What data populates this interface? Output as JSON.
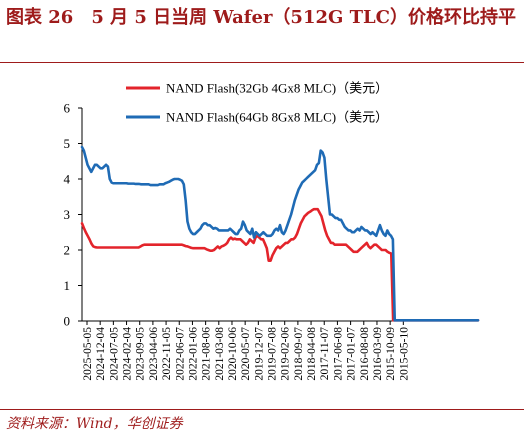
{
  "title": "图表 26　5 月 5 日当周 Wafer（512G TLC）价格环比持平",
  "source": "资料来源：Wind，华创证券",
  "colors": {
    "title": "#9e1b1b",
    "series_red": "#e3242b",
    "series_blue": "#1f6bb5",
    "axis": "#000000"
  },
  "chart_data": {
    "type": "line",
    "ylim": [
      0,
      6
    ],
    "yticks": [
      "0",
      "1",
      "2",
      "3",
      "4",
      "5",
      "6"
    ],
    "x_tick_labels": [
      "2025-05-05",
      "2024-12-04",
      "2024-07-05",
      "2024-02-04",
      "2023-09-05",
      "2023-04-06",
      "2022-11-05",
      "2022-06-07",
      "2022-01-06",
      "2021-08-06",
      "2021-03-08",
      "2020-10-06",
      "2020-05-07",
      "2019-12-07",
      "2019-07-08",
      "2019-02-06",
      "2018-09-07",
      "2018-04-08",
      "2017-11-07",
      "2017-06-08",
      "2017-01-07",
      "2016-08-08",
      "2016-03-09",
      "2015-10-09",
      "2015-05-10"
    ],
    "legend_position": "top",
    "series": [
      {
        "name": "NAND Flash(32Gb 4Gx8 MLC)（美元）",
        "color": "#e3242b",
        "values": [
          2.75,
          2.62,
          2.5,
          2.4,
          2.3,
          2.18,
          2.1,
          2.08,
          2.07,
          2.07,
          2.07,
          2.07,
          2.07,
          2.07,
          2.07,
          2.07,
          2.07,
          2.07,
          2.07,
          2.07,
          2.07,
          2.07,
          2.07,
          2.07,
          2.07,
          2.07,
          2.07,
          2.07,
          2.07,
          2.07,
          2.07,
          2.1,
          2.13,
          2.15,
          2.15,
          2.15,
          2.15,
          2.15,
          2.15,
          2.15,
          2.15,
          2.15,
          2.15,
          2.15,
          2.15,
          2.15,
          2.15,
          2.15,
          2.15,
          2.15,
          2.15,
          2.15,
          2.15,
          2.15,
          2.13,
          2.11,
          2.1,
          2.08,
          2.06,
          2.05,
          2.05,
          2.05,
          2.05,
          2.05,
          2.05,
          2.05,
          2.02,
          2.0,
          1.98,
          1.98,
          2.0,
          2.05,
          2.1,
          2.05,
          2.1,
          2.12,
          2.15,
          2.2,
          2.3,
          2.35,
          2.3,
          2.32,
          2.3,
          2.3,
          2.3,
          2.25,
          2.2,
          2.15,
          2.2,
          2.3,
          2.25,
          2.2,
          2.35,
          2.4,
          2.35,
          2.3,
          2.3,
          2.18,
          2.05,
          1.7,
          1.7,
          1.85,
          1.95,
          2.05,
          2.1,
          2.05,
          2.1,
          2.15,
          2.2,
          2.2,
          2.25,
          2.3,
          2.3,
          2.35,
          2.45,
          2.6,
          2.75,
          2.85,
          2.95,
          3.0,
          3.05,
          3.08,
          3.12,
          3.15,
          3.15,
          3.15,
          3.05,
          2.95,
          2.75,
          2.55,
          2.4,
          2.3,
          2.2,
          2.2,
          2.15,
          2.15,
          2.15,
          2.15,
          2.15,
          2.15,
          2.15,
          2.1,
          2.05,
          2.0,
          1.95,
          1.95,
          1.95,
          2.0,
          2.05,
          2.1,
          2.15,
          2.2,
          2.1,
          2.05,
          2.1,
          2.15,
          2.15,
          2.1,
          2.05,
          2.0,
          2.0,
          2.0,
          1.95,
          1.92,
          1.9,
          0.02,
          0.02,
          0.02,
          0.02,
          0.02,
          0.02,
          0.02,
          0.02,
          0.02,
          0.02,
          0.02,
          0.02,
          0.02,
          0.02,
          0.02,
          0.02,
          0.02,
          0.02,
          0.02,
          0.02,
          0.02,
          0.02,
          0.02,
          0.02,
          0.02,
          0.02,
          0.02,
          0.02,
          0.02,
          0.02,
          0.02,
          0.02,
          0.02,
          0.02,
          0.02,
          0.02,
          0.02,
          0.02,
          0.02,
          0.02,
          0.02,
          0.02,
          0.02,
          0.02,
          0.02,
          0.02
        ]
      },
      {
        "name": "NAND Flash(64Gb 8Gx8 MLC)（美元）",
        "color": "#1f6bb5",
        "values": [
          4.9,
          4.8,
          4.6,
          4.4,
          4.3,
          4.2,
          4.3,
          4.4,
          4.4,
          4.35,
          4.3,
          4.3,
          4.35,
          4.4,
          4.35,
          4.0,
          3.9,
          3.88,
          3.88,
          3.88,
          3.88,
          3.88,
          3.88,
          3.88,
          3.88,
          3.87,
          3.87,
          3.87,
          3.87,
          3.86,
          3.86,
          3.86,
          3.85,
          3.85,
          3.85,
          3.85,
          3.85,
          3.83,
          3.83,
          3.83,
          3.83,
          3.83,
          3.85,
          3.85,
          3.85,
          3.88,
          3.9,
          3.92,
          3.95,
          3.98,
          4.0,
          4.0,
          4.0,
          3.98,
          3.95,
          3.85,
          3.4,
          2.8,
          2.6,
          2.5,
          2.45,
          2.45,
          2.5,
          2.55,
          2.6,
          2.7,
          2.75,
          2.75,
          2.7,
          2.7,
          2.65,
          2.6,
          2.62,
          2.6,
          2.55,
          2.55,
          2.55,
          2.55,
          2.55,
          2.55,
          2.6,
          2.55,
          2.5,
          2.45,
          2.45,
          2.55,
          2.6,
          2.8,
          2.7,
          2.55,
          2.5,
          2.45,
          2.6,
          2.35,
          2.5,
          2.45,
          2.4,
          2.45,
          2.5,
          2.45,
          2.4,
          2.4,
          2.4,
          2.45,
          2.55,
          2.6,
          2.55,
          2.7,
          2.5,
          2.45,
          2.55,
          2.7,
          2.85,
          3.0,
          3.2,
          3.4,
          3.55,
          3.7,
          3.8,
          3.9,
          3.95,
          4.0,
          4.05,
          4.1,
          4.15,
          4.2,
          4.25,
          4.4,
          4.45,
          4.8,
          4.75,
          4.6,
          4.0,
          3.5,
          3.0,
          3.0,
          2.95,
          2.9,
          2.9,
          2.85,
          2.85,
          2.75,
          2.65,
          2.6,
          2.55,
          2.55,
          2.5,
          2.5,
          2.55,
          2.6,
          2.55,
          2.65,
          2.6,
          2.55,
          2.55,
          2.5,
          2.45,
          2.5,
          2.45,
          2.4,
          2.55,
          2.7,
          2.55,
          2.45,
          2.4,
          2.55,
          2.45,
          2.4,
          2.3,
          0.02,
          0.02,
          0.02,
          0.02,
          0.02,
          0.02,
          0.02,
          0.02,
          0.02,
          0.02,
          0.02,
          0.02,
          0.02,
          0.02,
          0.02,
          0.02,
          0.02,
          0.02,
          0.02,
          0.02,
          0.02,
          0.02,
          0.02,
          0.02,
          0.02,
          0.02,
          0.02,
          0.02,
          0.02,
          0.02,
          0.02,
          0.02,
          0.02,
          0.02,
          0.02,
          0.02,
          0.02,
          0.02,
          0.02,
          0.02,
          0.02,
          0.02,
          0.02,
          0.02,
          0.02,
          0.02
        ]
      }
    ]
  }
}
